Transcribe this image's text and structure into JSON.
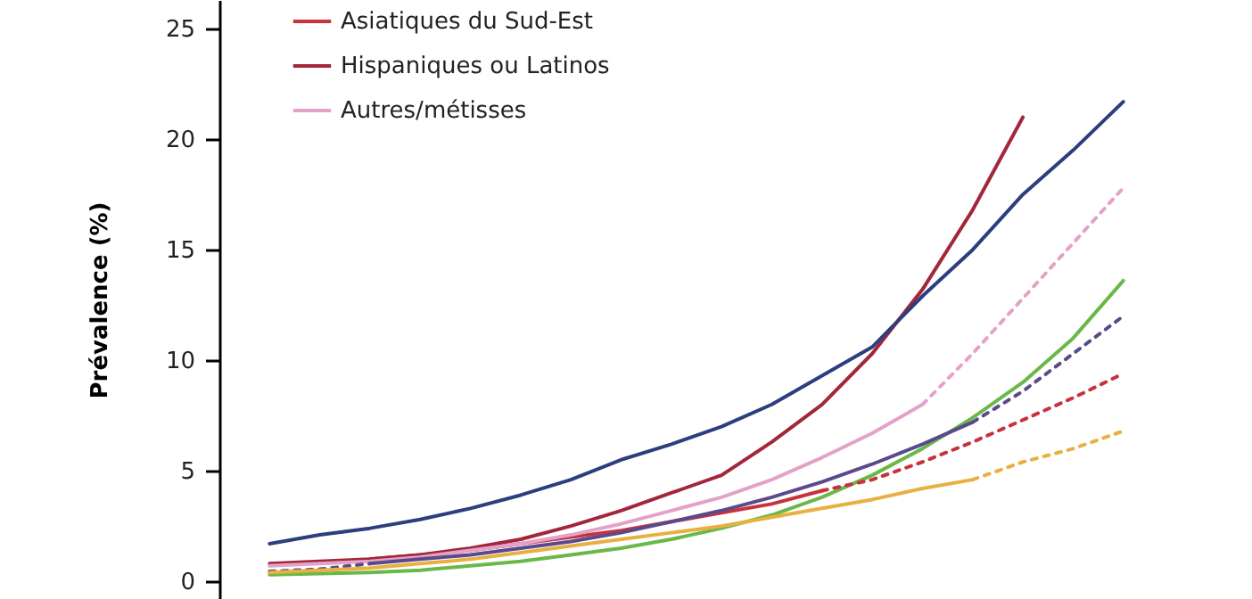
{
  "chart_data": {
    "type": "line",
    "ylabel": "Prévalence (%)",
    "ylim": [
      -0.8,
      26.3
    ],
    "yticks": [
      0,
      5,
      10,
      15,
      20,
      25
    ],
    "grid": false,
    "legend": "top left",
    "tick_labels": "y",
    "marker": "none",
    "categories": [
      null,
      null,
      null,
      null,
      null,
      null,
      null,
      null,
      null,
      null,
      null,
      null,
      null,
      null,
      null,
      null,
      null,
      null
    ],
    "series": [
      {
        "name": "Asiatiques du Sud-Est",
        "color": "#c8323c",
        "line_style": "solid",
        "values": [
          null,
          null,
          1.0,
          1.2,
          1.4,
          1.7,
          2.0,
          2.3,
          2.7,
          3.1,
          3.5,
          4.1,
          null,
          null,
          null,
          null,
          null,
          null
        ]
      },
      {
        "name": "Hispaniques ou Latinos",
        "color": "#a3263a",
        "line_style": "solid",
        "values": [
          0.8,
          0.9,
          1.0,
          1.2,
          1.5,
          1.9,
          2.5,
          3.2,
          4.0,
          4.8,
          6.3,
          8.0,
          10.3,
          13.2,
          16.8,
          21.0,
          null,
          null
        ]
      },
      {
        "name": "Autres/métisses",
        "color": "#e3a2c8",
        "line_style": "solid",
        "values": [
          0.7,
          0.8,
          0.9,
          1.1,
          1.4,
          1.7,
          2.1,
          2.6,
          3.2,
          3.8,
          4.6,
          5.6,
          6.7,
          8.0,
          null,
          null,
          null,
          null
        ]
      },
      {
        "color": "#2d3e7e",
        "line_style": "solid",
        "values": [
          1.7,
          2.1,
          2.4,
          2.8,
          3.3,
          3.9,
          4.6,
          5.5,
          6.2,
          7.0,
          8.0,
          9.3,
          10.6,
          12.9,
          15.0,
          17.5,
          19.5,
          21.7
        ]
      },
      {
        "color": "#6ab84a",
        "line_style": "solid",
        "values": [
          0.3,
          0.35,
          0.4,
          0.5,
          0.7,
          0.9,
          1.2,
          1.5,
          1.9,
          2.4,
          3.0,
          3.8,
          4.8,
          6.0,
          7.4,
          9.0,
          11.0,
          13.6
        ]
      },
      {
        "color": "#5a4a8c",
        "line_style": "solid",
        "values": [
          null,
          null,
          0.8,
          1.0,
          1.2,
          1.5,
          1.8,
          2.2,
          2.7,
          3.2,
          3.8,
          4.5,
          5.3,
          6.2,
          7.2,
          null,
          null,
          null
        ]
      },
      {
        "color": "#5a4a8c",
        "line_style": "dotted",
        "values": [
          0.45,
          0.55,
          0.8,
          null,
          null,
          null,
          null,
          null,
          null,
          null,
          null,
          null,
          null,
          null,
          null,
          null,
          null,
          null
        ]
      },
      {
        "color": "#5a4a8c",
        "line_style": "dotted",
        "values": [
          null,
          null,
          null,
          null,
          null,
          null,
          null,
          null,
          null,
          null,
          null,
          null,
          null,
          null,
          7.2,
          8.6,
          10.3,
          12.0
        ]
      },
      {
        "color": "#e8b040",
        "line_style": "solid",
        "values": [
          0.4,
          0.5,
          0.6,
          0.8,
          1.0,
          1.3,
          1.6,
          1.9,
          2.2,
          2.5,
          2.9,
          3.3,
          3.7,
          4.2,
          4.6,
          null,
          null,
          null
        ]
      },
      {
        "color": "#e8b040",
        "line_style": "dotted",
        "values": [
          null,
          null,
          null,
          null,
          null,
          null,
          null,
          null,
          null,
          null,
          null,
          null,
          null,
          null,
          4.6,
          5.4,
          6.0,
          6.8
        ]
      },
      {
        "color": "#c8323c",
        "line_style": "dotted",
        "values": [
          null,
          null,
          null,
          null,
          null,
          null,
          null,
          null,
          null,
          null,
          null,
          4.1,
          4.6,
          5.4,
          6.3,
          7.3,
          8.3,
          9.4
        ]
      },
      {
        "color": "#e3a2c8",
        "line_style": "dotted",
        "values": [
          null,
          null,
          null,
          null,
          null,
          null,
          null,
          null,
          null,
          null,
          null,
          null,
          null,
          8.0,
          10.3,
          12.8,
          15.3,
          17.8
        ]
      }
    ]
  }
}
